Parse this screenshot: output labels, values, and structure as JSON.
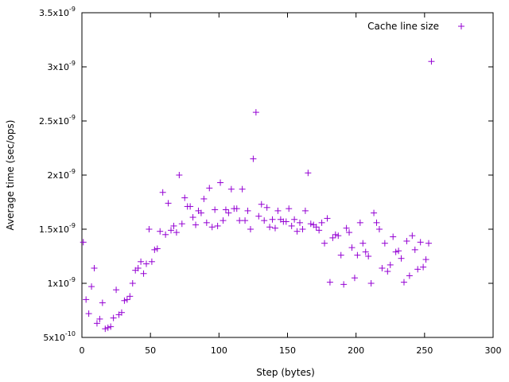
{
  "chart_data": {
    "type": "scatter",
    "title": "",
    "xlabel": "Step (bytes)",
    "ylabel": "Average time (sec/ops)",
    "xlim": [
      0,
      300
    ],
    "ylim": [
      5e-10,
      3.5e-09
    ],
    "grid": false,
    "legend_position": "top-right",
    "x_ticks": [
      {
        "value": 0,
        "label": "0"
      },
      {
        "value": 50,
        "label": "50"
      },
      {
        "value": 100,
        "label": "100"
      },
      {
        "value": 150,
        "label": "150"
      },
      {
        "value": 200,
        "label": "200"
      },
      {
        "value": 250,
        "label": "250"
      },
      {
        "value": 300,
        "label": "300"
      }
    ],
    "y_ticks": [
      {
        "value": 5e-10,
        "label": "5x10",
        "exp": "-10"
      },
      {
        "value": 1e-09,
        "label": "1x10",
        "exp": "-9"
      },
      {
        "value": 1.5e-09,
        "label": "1.5x10",
        "exp": "-9"
      },
      {
        "value": 2e-09,
        "label": "2x10",
        "exp": "-9"
      },
      {
        "value": 2.5e-09,
        "label": "2.5x10",
        "exp": "-9"
      },
      {
        "value": 3e-09,
        "label": "3x10",
        "exp": "-9"
      },
      {
        "value": 3.5e-09,
        "label": "3.5x10",
        "exp": "-9"
      }
    ],
    "series": [
      {
        "name": "Cache line size",
        "color": "#9400d3",
        "marker": "plus",
        "x": [
          1,
          3,
          5,
          7,
          9,
          11,
          13,
          15,
          17,
          19,
          21,
          23,
          25,
          27,
          29,
          31,
          33,
          35,
          37,
          39,
          41,
          43,
          45,
          47,
          49,
          51,
          53,
          55,
          57,
          59,
          61,
          63,
          65,
          67,
          69,
          71,
          73,
          75,
          77,
          79,
          81,
          83,
          85,
          87,
          89,
          91,
          93,
          95,
          97,
          99,
          101,
          103,
          105,
          107,
          109,
          111,
          113,
          115,
          117,
          119,
          121,
          123,
          125,
          127,
          129,
          131,
          133,
          135,
          137,
          139,
          141,
          143,
          145,
          147,
          149,
          151,
          153,
          155,
          157,
          159,
          161,
          163,
          165,
          167,
          169,
          171,
          173,
          175,
          177,
          179,
          181,
          183,
          185,
          187,
          189,
          191,
          193,
          195,
          197,
          199,
          201,
          203,
          205,
          207,
          209,
          211,
          213,
          215,
          217,
          219,
          221,
          223,
          225,
          227,
          229,
          231,
          233,
          235,
          237,
          239,
          241,
          243,
          245,
          247,
          249,
          251,
          253,
          255
        ],
        "y": [
          1.38e-09,
          8.5e-10,
          7.2e-10,
          9.7e-10,
          1.14e-09,
          6.3e-10,
          6.7e-10,
          8.2e-10,
          5.8e-10,
          5.9e-10,
          6e-10,
          6.8e-10,
          9.4e-10,
          7.1e-10,
          7.3e-10,
          8.4e-10,
          8.5e-10,
          8.8e-10,
          1e-09,
          1.12e-09,
          1.14e-09,
          1.2e-09,
          1.09e-09,
          1.18e-09,
          1.5e-09,
          1.2e-09,
          1.31e-09,
          1.32e-09,
          1.48e-09,
          1.84e-09,
          1.45e-09,
          1.74e-09,
          1.49e-09,
          1.53e-09,
          1.47e-09,
          2e-09,
          1.55e-09,
          1.79e-09,
          1.71e-09,
          1.71e-09,
          1.61e-09,
          1.54e-09,
          1.67e-09,
          1.65e-09,
          1.78e-09,
          1.56e-09,
          1.88e-09,
          1.52e-09,
          1.68e-09,
          1.53e-09,
          1.93e-09,
          1.58e-09,
          1.68e-09,
          1.65e-09,
          1.87e-09,
          1.69e-09,
          1.69e-09,
          1.58e-09,
          1.87e-09,
          1.58e-09,
          1.67e-09,
          1.5e-09,
          2.15e-09,
          2.58e-09,
          1.62e-09,
          1.73e-09,
          1.58e-09,
          1.7e-09,
          1.52e-09,
          1.59e-09,
          1.51e-09,
          1.67e-09,
          1.59e-09,
          1.57e-09,
          1.57e-09,
          1.69e-09,
          1.53e-09,
          1.59e-09,
          1.48e-09,
          1.56e-09,
          1.5e-09,
          1.67e-09,
          2.02e-09,
          1.55e-09,
          1.54e-09,
          1.52e-09,
          1.49e-09,
          1.56e-09,
          1.37e-09,
          1.6e-09,
          1.01e-09,
          1.42e-09,
          1.45e-09,
          1.44e-09,
          1.26e-09,
          9.9e-10,
          1.51e-09,
          1.47e-09,
          1.33e-09,
          1.05e-09,
          1.26e-09,
          1.56e-09,
          1.37e-09,
          1.29e-09,
          1.25e-09,
          1e-09,
          1.65e-09,
          1.56e-09,
          1.5e-09,
          1.14e-09,
          1.37e-09,
          1.11e-09,
          1.17e-09,
          1.43e-09,
          1.29e-09,
          1.3e-09,
          1.23e-09,
          1.01e-09,
          1.39e-09,
          1.07e-09,
          1.44e-09,
          1.31e-09,
          1.13e-09,
          1.38e-09,
          1.15e-09,
          1.22e-09,
          1.37e-09,
          3.05e-09
        ]
      }
    ]
  }
}
